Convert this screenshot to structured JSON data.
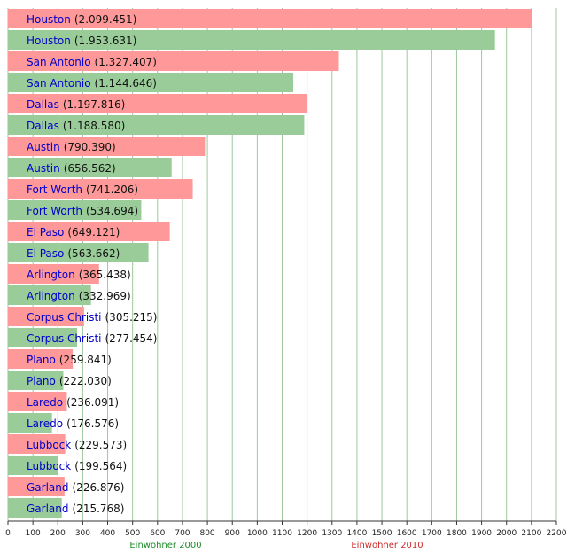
{
  "chart_data": {
    "type": "bar",
    "orientation": "horizontal",
    "xlim": [
      0,
      2200
    ],
    "x_ticks": [
      "0",
      "100",
      "200",
      "300",
      "400",
      "500",
      "600",
      "700",
      "800",
      "900",
      "1000",
      "1100",
      "1200",
      "1300",
      "1400",
      "1500",
      "1600",
      "1700",
      "1800",
      "1900",
      "2000",
      "2100",
      "2200"
    ],
    "grid": "vertical",
    "legend": [
      {
        "label": "Einwohner 2000",
        "color": "#1e8c2a"
      },
      {
        "label": "Einwohner 2010",
        "color": "#cc2a2a"
      }
    ],
    "colors": {
      "2010": "#ff9999",
      "2000": "#99cc99",
      "city_text": "#0000cc"
    },
    "bars": [
      {
        "city": "Houston",
        "year": "2010",
        "label": "(2.099.451)",
        "value": 2099.451
      },
      {
        "city": "Houston",
        "year": "2000",
        "label": "(1.953.631)",
        "value": 1953.631
      },
      {
        "city": "San Antonio",
        "year": "2010",
        "label": "(1.327.407)",
        "value": 1327.407
      },
      {
        "city": "San Antonio",
        "year": "2000",
        "label": "(1.144.646)",
        "value": 1144.646
      },
      {
        "city": "Dallas",
        "year": "2010",
        "label": "(1.197.816)",
        "value": 1197.816
      },
      {
        "city": "Dallas",
        "year": "2000",
        "label": "(1.188.580)",
        "value": 1188.58
      },
      {
        "city": "Austin",
        "year": "2010",
        "label": "(790.390)",
        "value": 790.39
      },
      {
        "city": "Austin",
        "year": "2000",
        "label": "(656.562)",
        "value": 656.562
      },
      {
        "city": "Fort Worth",
        "year": "2010",
        "label": "(741.206)",
        "value": 741.206
      },
      {
        "city": "Fort Worth",
        "year": "2000",
        "label": "(534.694)",
        "value": 534.694
      },
      {
        "city": "El Paso",
        "year": "2010",
        "label": "(649.121)",
        "value": 649.121
      },
      {
        "city": "El Paso",
        "year": "2000",
        "label": "(563.662)",
        "value": 563.662
      },
      {
        "city": "Arlington",
        "year": "2010",
        "label": "(365.438)",
        "value": 365.438
      },
      {
        "city": "Arlington",
        "year": "2000",
        "label": "(332.969)",
        "value": 332.969
      },
      {
        "city": "Corpus Christi",
        "year": "2010",
        "label": "(305.215)",
        "value": 305.215
      },
      {
        "city": "Corpus Christi",
        "year": "2000",
        "label": "(277.454)",
        "value": 277.454
      },
      {
        "city": "Plano",
        "year": "2010",
        "label": "(259.841)",
        "value": 259.841
      },
      {
        "city": "Plano",
        "year": "2000",
        "label": "(222.030)",
        "value": 222.03
      },
      {
        "city": "Laredo",
        "year": "2010",
        "label": "(236.091)",
        "value": 236.091
      },
      {
        "city": "Laredo",
        "year": "2000",
        "label": "(176.576)",
        "value": 176.576
      },
      {
        "city": "Lubbock",
        "year": "2010",
        "label": "(229.573)",
        "value": 229.573
      },
      {
        "city": "Lubbock",
        "year": "2000",
        "label": "(199.564)",
        "value": 199.564
      },
      {
        "city": "Garland",
        "year": "2010",
        "label": "(226.876)",
        "value": 226.876
      },
      {
        "city": "Garland",
        "year": "2000",
        "label": "(215.768)",
        "value": 215.768
      }
    ]
  }
}
